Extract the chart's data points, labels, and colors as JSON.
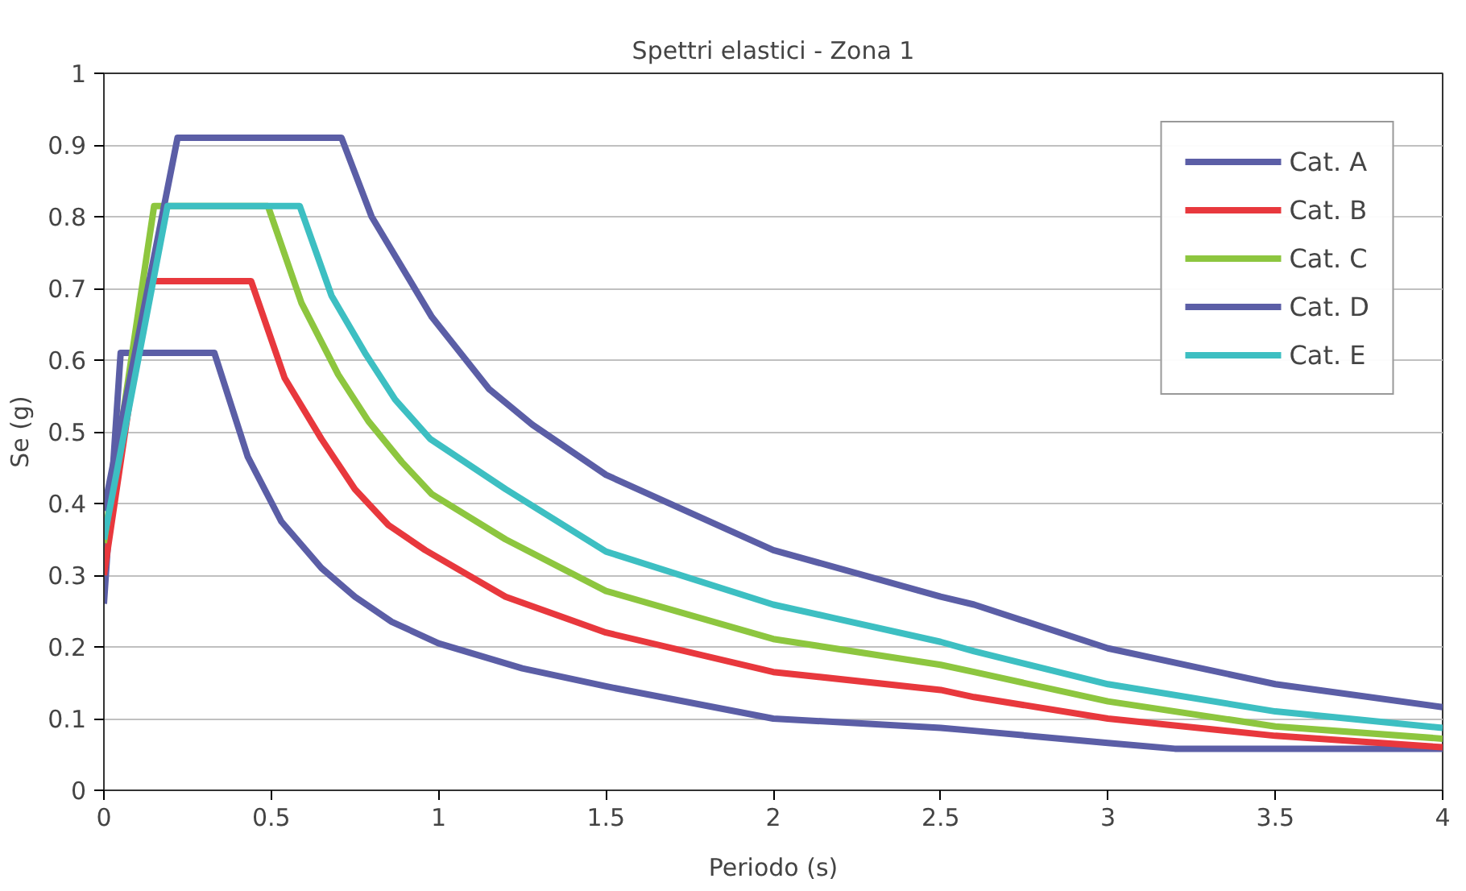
{
  "chart_data": {
    "type": "line",
    "title": "Spettri elastici - Zona 1",
    "xlabel": "Periodo (s)",
    "ylabel": "Se (g)",
    "xlim": [
      0,
      4
    ],
    "ylim": [
      0,
      1
    ],
    "xticks": [
      0,
      0.5,
      1,
      1.5,
      2,
      2.5,
      3,
      3.5,
      4
    ],
    "yticks": [
      0,
      0.1,
      0.2,
      0.3,
      0.4,
      0.5,
      0.6,
      0.7,
      0.8,
      0.9,
      1
    ],
    "grid": "y",
    "legend": "top right",
    "marker": "none",
    "line_style": "solid",
    "series": [
      {
        "name": "Cat. A",
        "color": "#5b5ea6",
        "x": [
          0,
          0.05,
          0.33,
          0.43,
          0.53,
          0.65,
          0.75,
          0.86,
          1.0,
          1.25,
          1.5,
          2.0,
          2.5,
          2.6,
          3.0,
          3.2,
          4.0
        ],
        "values": [
          0.26,
          0.61,
          0.61,
          0.465,
          0.375,
          0.31,
          0.27,
          0.235,
          0.205,
          0.17,
          0.145,
          0.1,
          0.087,
          0.083,
          0.066,
          0.058,
          0.058
        ]
      },
      {
        "name": "Cat. B",
        "color": "#e8383d",
        "x": [
          0,
          0.13,
          0.44,
          0.54,
          0.65,
          0.75,
          0.85,
          0.96,
          1.2,
          1.5,
          2.0,
          2.5,
          2.6,
          3.0,
          3.5,
          4.0
        ],
        "values": [
          0.3,
          0.71,
          0.71,
          0.575,
          0.49,
          0.42,
          0.37,
          0.335,
          0.27,
          0.22,
          0.165,
          0.14,
          0.13,
          0.1,
          0.076,
          0.06
        ]
      },
      {
        "name": "Cat. C",
        "color": "#8dc63f",
        "x": [
          0,
          0.15,
          0.49,
          0.59,
          0.7,
          0.79,
          0.89,
          0.98,
          1.2,
          1.5,
          2.0,
          2.5,
          2.6,
          3.0,
          3.5,
          4.0
        ],
        "values": [
          0.345,
          0.815,
          0.815,
          0.68,
          0.58,
          0.515,
          0.458,
          0.413,
          0.35,
          0.278,
          0.211,
          0.175,
          0.165,
          0.124,
          0.089,
          0.072
        ]
      },
      {
        "name": "Cat. D",
        "color": "#5b5ea6",
        "x": [
          0,
          0.22,
          0.71,
          0.8,
          0.98,
          1.15,
          1.28,
          1.5,
          2.0,
          2.5,
          2.6,
          3.0,
          3.5,
          4.0
        ],
        "values": [
          0.39,
          0.91,
          0.91,
          0.8,
          0.66,
          0.56,
          0.51,
          0.44,
          0.335,
          0.27,
          0.259,
          0.198,
          0.148,
          0.116
        ]
      },
      {
        "name": "Cat. E",
        "color": "#3dbfc2",
        "x": [
          0,
          0.19,
          0.585,
          0.68,
          0.78,
          0.87,
          0.975,
          1.2,
          1.5,
          2.0,
          2.5,
          2.6,
          3.0,
          3.5,
          4.0
        ],
        "values": [
          0.35,
          0.815,
          0.815,
          0.69,
          0.61,
          0.545,
          0.49,
          0.42,
          0.333,
          0.259,
          0.207,
          0.194,
          0.148,
          0.11,
          0.087
        ]
      }
    ]
  }
}
